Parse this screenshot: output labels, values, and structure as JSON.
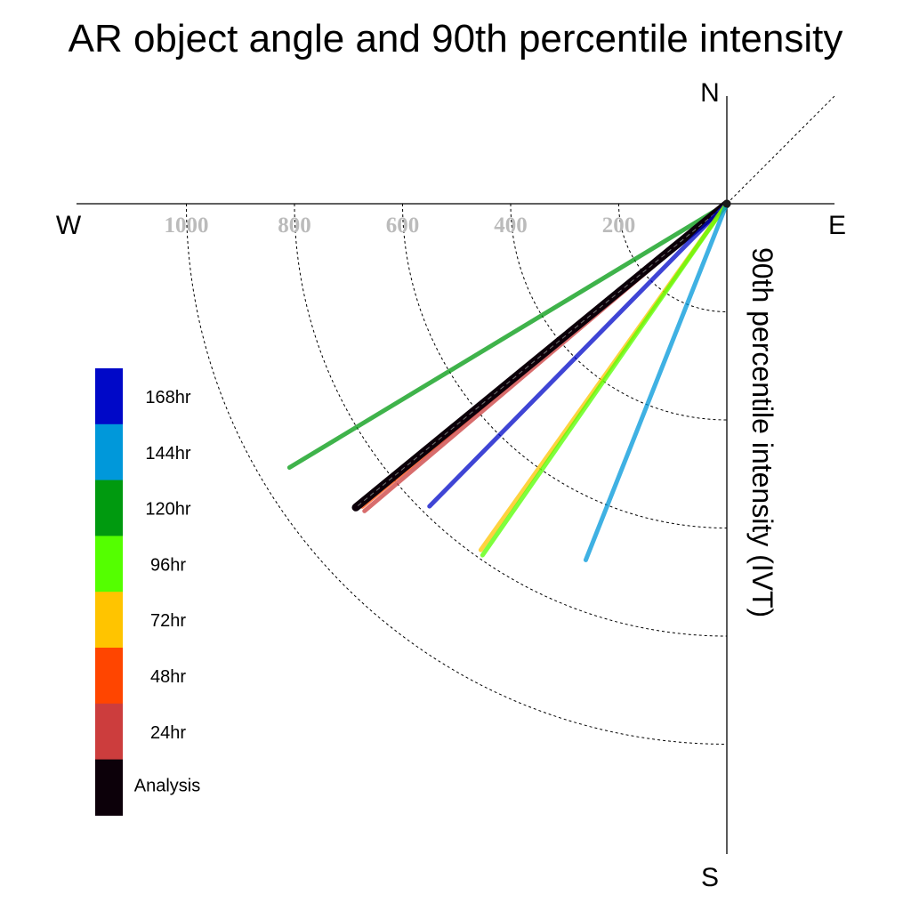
{
  "chart_data": {
    "type": "polar-vector",
    "title": "AR object angle and 90th percentile intensity",
    "axis_label": "90th percentile intensity (IVT)",
    "compass": {
      "north": "N",
      "south": "S",
      "east": "E",
      "west": "W"
    },
    "radial_ticks": [
      200,
      400,
      600,
      800,
      1000
    ],
    "radial_tick_labels": [
      "200",
      "400",
      "600",
      "800",
      "1000"
    ],
    "radial_max": 1000,
    "series": [
      {
        "name": "120hr",
        "color": "#009A0F",
        "intensity": 945,
        "direction_deg": 238.9
      },
      {
        "name": "48hr",
        "color": "#FF4500",
        "intensity": 877,
        "direction_deg": 230.3
      },
      {
        "name": "24hr",
        "color": "#CC3D3D",
        "intensity": 879,
        "direction_deg": 229.7
      },
      {
        "name": "Analysis",
        "color": "#0C0009",
        "intensity": 887,
        "direction_deg": 230.7
      },
      {
        "name": "168hr",
        "color": "#0008C8",
        "intensity": 785,
        "direction_deg": 224.5
      },
      {
        "name": "72hr",
        "color": "#FFC400",
        "intensity": 786,
        "direction_deg": 215.4
      },
      {
        "name": "96hr",
        "color": "#54FF00",
        "intensity": 792,
        "direction_deg": 214.8
      },
      {
        "name": "144hr",
        "color": "#0098DA",
        "intensity": 709,
        "direction_deg": 201.6
      }
    ],
    "legend": [
      {
        "label": "168hr",
        "color": "#0008C8"
      },
      {
        "label": "144hr",
        "color": "#0098DA"
      },
      {
        "label": "120hr",
        "color": "#009A0F"
      },
      {
        "label": "96hr",
        "color": "#54FF00"
      },
      {
        "label": "72hr",
        "color": "#FFC400"
      },
      {
        "label": "48hr",
        "color": "#FF4500"
      },
      {
        "label": "24hr",
        "color": "#CC3D3D"
      },
      {
        "label": "Analysis",
        "color": "#0C0009"
      }
    ],
    "legend_placement": "left"
  }
}
